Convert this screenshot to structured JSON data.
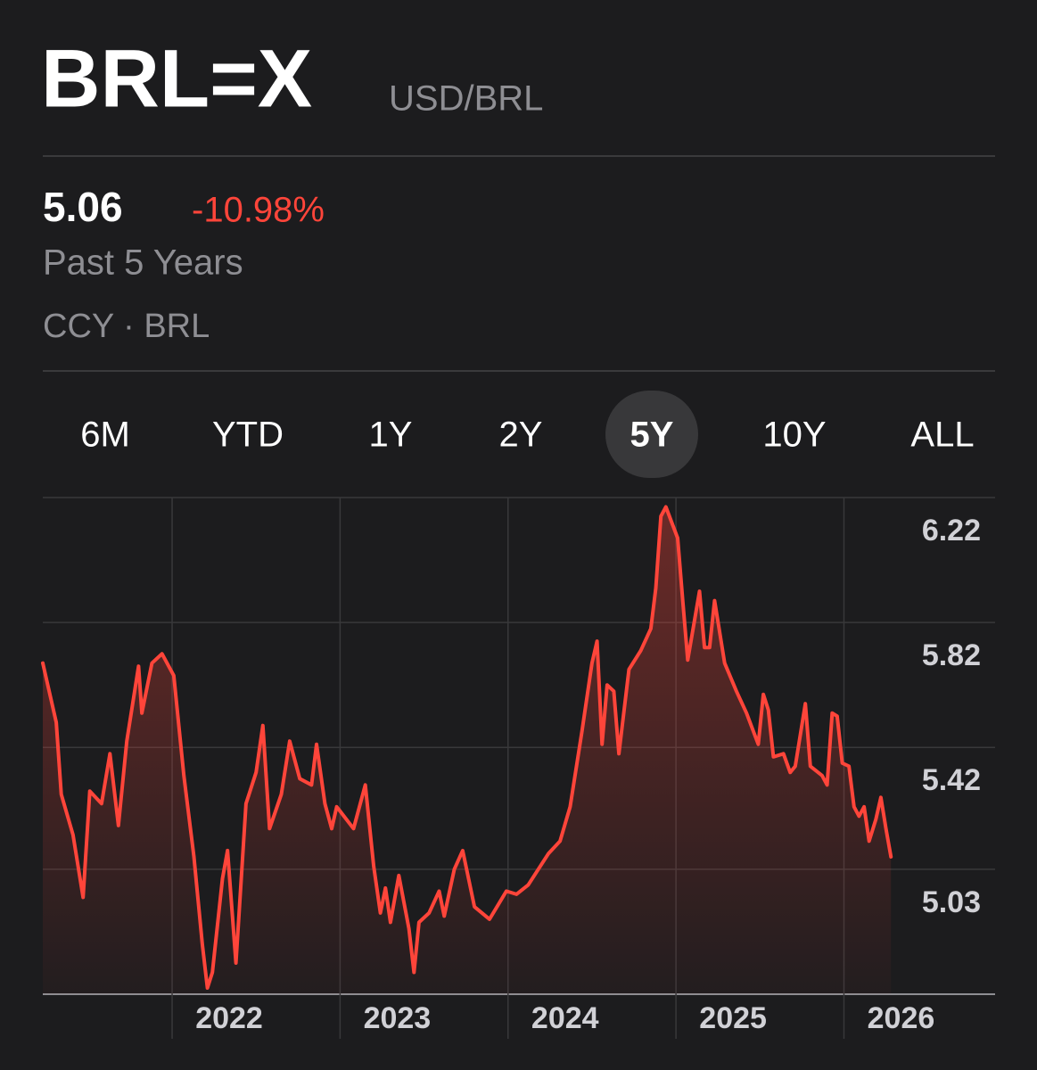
{
  "header": {
    "symbol": "BRL=X",
    "name": "USD/BRL"
  },
  "quote": {
    "price": "5.06",
    "change": "-10.98%",
    "period": "Past 5 Years",
    "meta": "CCY · BRL"
  },
  "ranges": {
    "options": [
      "6M",
      "YTD",
      "1Y",
      "2Y",
      "5Y",
      "10Y",
      "ALL"
    ],
    "selected": 4
  },
  "chart_data": {
    "type": "line",
    "color": "#ff453a",
    "grid": true,
    "x": [
      2021.23,
      2021.31,
      2021.34,
      2021.41,
      2021.47,
      2021.51,
      2021.58,
      2021.63,
      2021.68,
      2021.73,
      2021.8,
      2021.82,
      2021.88,
      2021.94,
      2022.01,
      2022.07,
      2022.13,
      2022.18,
      2022.21,
      2022.24,
      2022.3,
      2022.33,
      2022.38,
      2022.44,
      2022.5,
      2022.54,
      2022.58,
      2022.65,
      2022.7,
      2022.76,
      2022.83,
      2022.86,
      2022.91,
      2022.95,
      2022.98,
      2023.08,
      2023.15,
      2023.2,
      2023.24,
      2023.27,
      2023.3,
      2023.35,
      2023.41,
      2023.44,
      2023.47,
      2023.53,
      2023.59,
      2023.62,
      2023.68,
      2023.73,
      2023.8,
      2023.89,
      2023.99,
      2024.05,
      2024.12,
      2024.18,
      2024.24,
      2024.31,
      2024.37,
      2024.44,
      2024.5,
      2024.53,
      2024.56,
      2024.59,
      2024.63,
      2024.66,
      2024.72,
      2024.79,
      2024.85,
      2024.88,
      2024.91,
      2024.94,
      2025.01,
      2025.04,
      2025.07,
      2025.14,
      2025.17,
      2025.2,
      2025.23,
      2025.29,
      2025.36,
      2025.42,
      2025.49,
      2025.52,
      2025.55,
      2025.58,
      2025.64,
      2025.68,
      2025.71,
      2025.77,
      2025.8,
      2025.87,
      2025.9,
      2025.93,
      2025.96,
      2025.99,
      2026.03,
      2026.06,
      2026.09,
      2026.12,
      2026.15,
      2026.19,
      2026.22,
      2026.25,
      2026.28
    ],
    "values": [
      5.69,
      5.5,
      5.27,
      5.14,
      4.94,
      5.28,
      5.24,
      5.4,
      5.17,
      5.44,
      5.68,
      5.53,
      5.69,
      5.72,
      5.65,
      5.33,
      5.07,
      4.79,
      4.65,
      4.7,
      5.0,
      5.09,
      4.73,
      5.24,
      5.34,
      5.49,
      5.16,
      5.27,
      5.44,
      5.32,
      5.3,
      5.43,
      5.24,
      5.16,
      5.23,
      5.16,
      5.3,
      5.04,
      4.89,
      4.97,
      4.86,
      5.01,
      4.84,
      4.7,
      4.86,
      4.89,
      4.96,
      4.88,
      5.03,
      5.09,
      4.91,
      4.87,
      4.96,
      4.95,
      4.98,
      5.03,
      5.08,
      5.12,
      5.23,
      5.47,
      5.69,
      5.76,
      5.43,
      5.62,
      5.6,
      5.4,
      5.67,
      5.73,
      5.8,
      5.93,
      6.16,
      6.19,
      6.09,
      5.89,
      5.7,
      5.92,
      5.74,
      5.74,
      5.89,
      5.69,
      5.6,
      5.53,
      5.43,
      5.59,
      5.54,
      5.39,
      5.4,
      5.34,
      5.36,
      5.56,
      5.36,
      5.33,
      5.3,
      5.53,
      5.52,
      5.37,
      5.36,
      5.23,
      5.2,
      5.23,
      5.12,
      5.19,
      5.26,
      5.16,
      5.07
    ],
    "xlim": [
      2021.23,
      2026.9
    ],
    "xticks": [
      2022,
      2023,
      2024,
      2025,
      2026
    ],
    "ylim": [
      4.63,
      6.22
    ],
    "yticks": [
      5.03,
      5.42,
      5.82,
      6.22
    ]
  }
}
